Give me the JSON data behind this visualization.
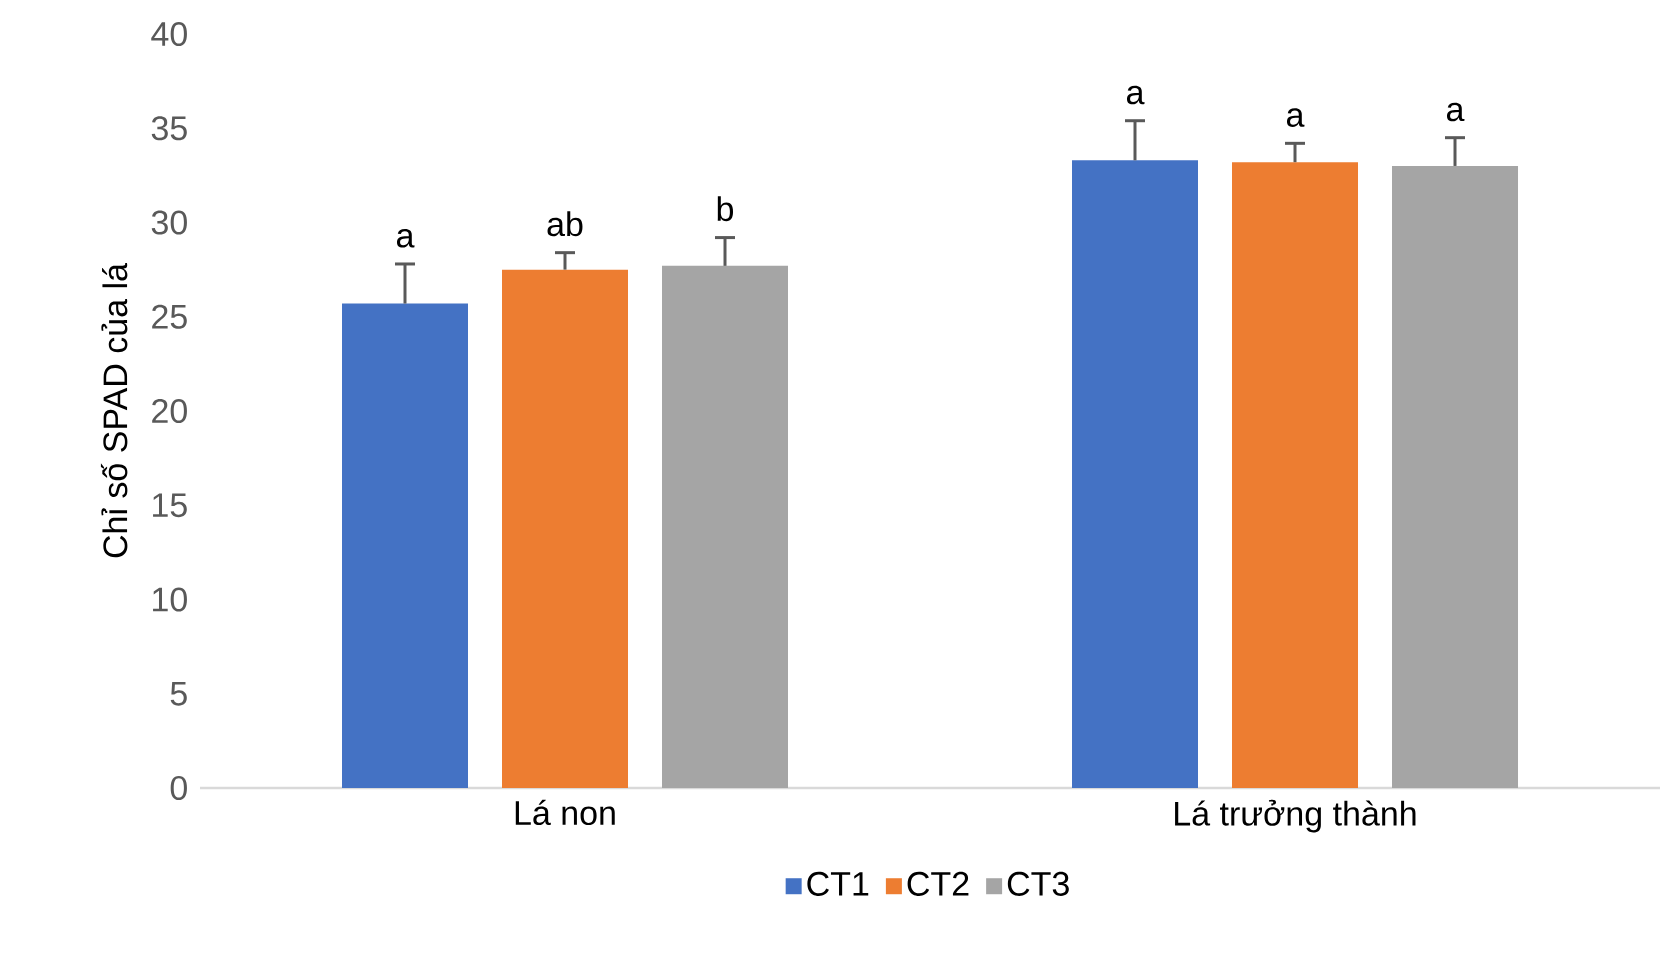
{
  "chart_data": {
    "type": "bar",
    "ylabel": "Chỉ số SPAD của lá",
    "categories": [
      "Lá non",
      "Lá trưởng thành"
    ],
    "ylim": [
      0,
      40
    ],
    "yticks": [
      0,
      5,
      10,
      15,
      20,
      25,
      30,
      35,
      40
    ],
    "grid": false,
    "legend": "bottom",
    "series": [
      {
        "name": "CT1",
        "color": "#4472c4",
        "values": [
          25.7,
          33.3
        ],
        "errors": [
          [
            25.7,
            27.8
          ],
          [
            33.3,
            35.4
          ]
        ],
        "value_labels": [
          "a",
          "a"
        ]
      },
      {
        "name": "CT2",
        "color": "#ed7d31",
        "values": [
          27.5,
          33.2
        ],
        "errors": [
          [
            27.5,
            28.4
          ],
          [
            33.2,
            34.2
          ]
        ],
        "value_labels": [
          "ab",
          "a"
        ]
      },
      {
        "name": "CT3",
        "color": "#a5a5a5",
        "values": [
          27.7,
          33.0
        ],
        "errors": [
          [
            27.7,
            29.2
          ],
          [
            33.0,
            34.5
          ]
        ],
        "value_labels": [
          "b",
          "a"
        ]
      }
    ]
  }
}
